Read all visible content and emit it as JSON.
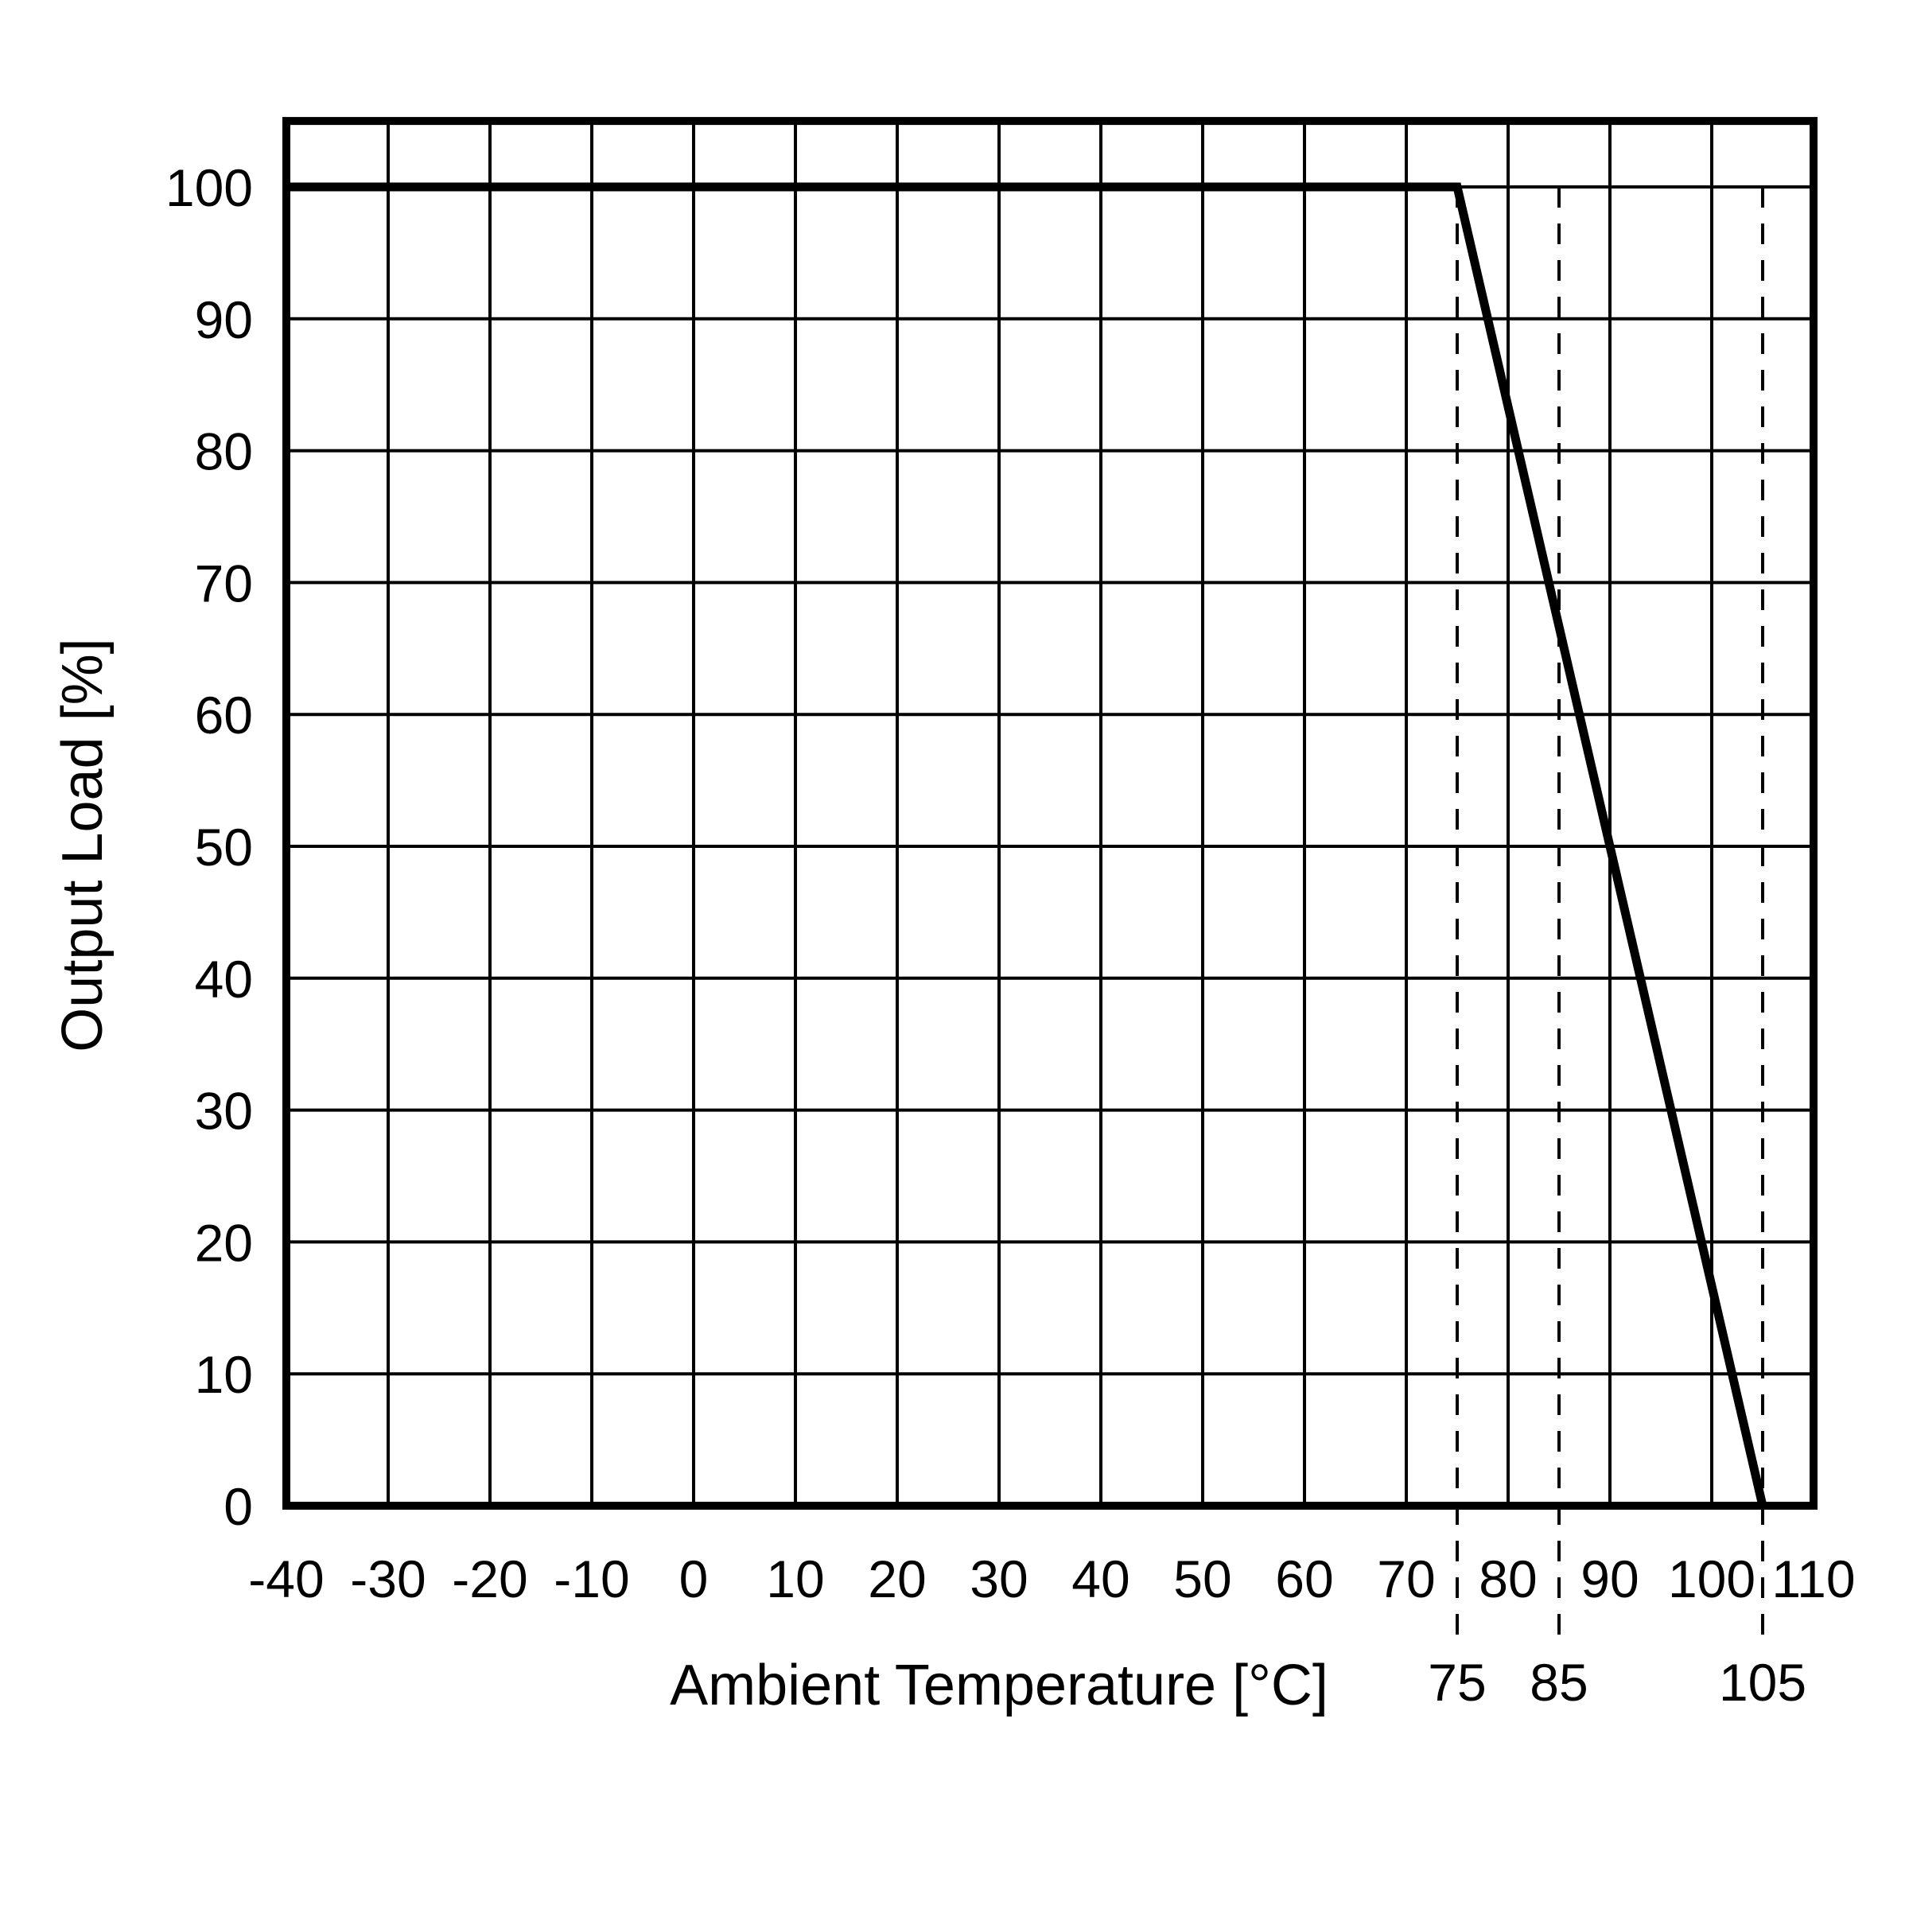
{
  "chart_data": {
    "type": "line",
    "title": "",
    "xlabel": "Ambient Temperature [°C]",
    "ylabel": "Output Load [%]",
    "xlim": [
      -40,
      110
    ],
    "ylim": [
      0,
      105
    ],
    "grid": true,
    "line_color": "#000000",
    "x_ticks": [
      {
        "value": -40,
        "label": "-40"
      },
      {
        "value": -30,
        "label": "-30"
      },
      {
        "value": -20,
        "label": "-20"
      },
      {
        "value": -10,
        "label": "-10"
      },
      {
        "value": 0,
        "label": "0"
      },
      {
        "value": 10,
        "label": "10"
      },
      {
        "value": 20,
        "label": "20"
      },
      {
        "value": 30,
        "label": "30"
      },
      {
        "value": 40,
        "label": "40"
      },
      {
        "value": 50,
        "label": "50"
      },
      {
        "value": 60,
        "label": "60"
      },
      {
        "value": 70,
        "label": "70"
      },
      {
        "value": 80,
        "label": "80"
      },
      {
        "value": 90,
        "label": "90"
      },
      {
        "value": 100,
        "label": "100"
      },
      {
        "value": 110,
        "label": "110"
      }
    ],
    "y_ticks": [
      {
        "value": 0,
        "label": "0"
      },
      {
        "value": 10,
        "label": "10"
      },
      {
        "value": 20,
        "label": "20"
      },
      {
        "value": 30,
        "label": "30"
      },
      {
        "value": 40,
        "label": "40"
      },
      {
        "value": 50,
        "label": "50"
      },
      {
        "value": 60,
        "label": "60"
      },
      {
        "value": 70,
        "label": "70"
      },
      {
        "value": 80,
        "label": "80"
      },
      {
        "value": 90,
        "label": "90"
      },
      {
        "value": 100,
        "label": "100"
      }
    ],
    "series": [
      {
        "points": [
          {
            "x": -40,
            "y": 100
          },
          {
            "x": 75,
            "y": 100
          },
          {
            "x": 105,
            "y": 0
          }
        ]
      }
    ],
    "reference_lines": [
      {
        "x": 75,
        "label": "75"
      },
      {
        "x": 85,
        "label": "85"
      },
      {
        "x": 105,
        "label": "105"
      }
    ]
  }
}
